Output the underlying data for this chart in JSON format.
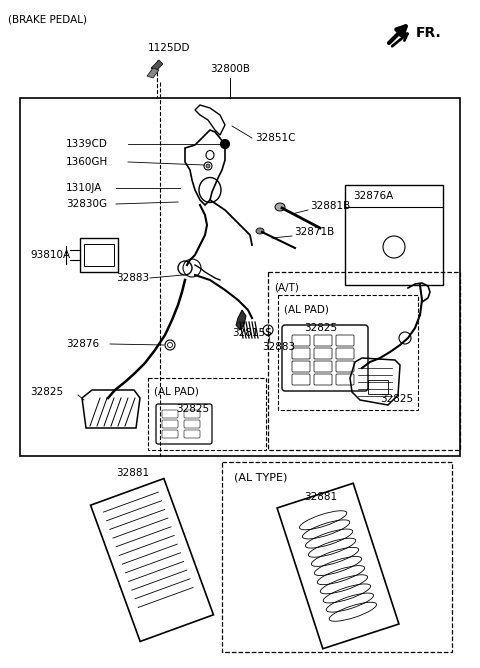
{
  "bg_color": "#ffffff",
  "text_color": "#000000",
  "fig_w": 4.8,
  "fig_h": 6.68,
  "dpi": 100,
  "labels": {
    "brake_pedal": "(BRAKE PEDAL)",
    "fr": "FR.",
    "l1125DD": "1125DD",
    "l32800B": "32800B",
    "l1339CD": "1339CD",
    "l1360GH": "1360GH",
    "l1310JA": "1310JA",
    "l32830G": "32830G",
    "l32851C": "32851C",
    "l32881B": "32881B",
    "l32871B": "32871B",
    "l93810A": "93810A",
    "l32883_a": "32883",
    "l32876": "32876",
    "l32825_a": "32825",
    "l32815S": "32815S",
    "l32883_b": "32883",
    "l32876A": "32876A",
    "lAT": "(A/T)",
    "lALPAD_at": "(AL PAD)",
    "l32825_at": "32825",
    "l32825_right": "32825",
    "lALPAD_main": "(AL PAD)",
    "l32825_main": "32825",
    "lAL_TYPE": "(AL TYPE)",
    "l32881_left": "32881",
    "l32881_right": "32881"
  }
}
